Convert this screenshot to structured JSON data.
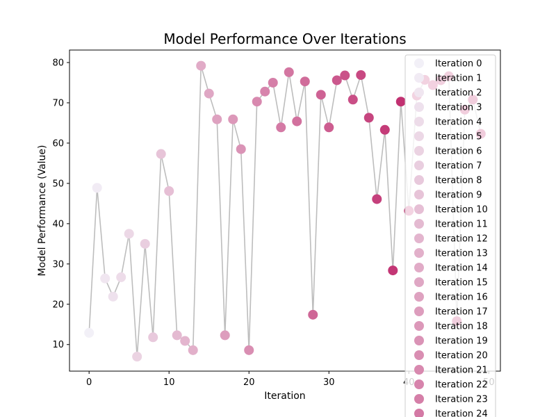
{
  "chart_data": {
    "type": "scatter",
    "title": "Model Performance Over Iterations",
    "xlabel": "Iteration",
    "ylabel": "Model Performance (Value)",
    "xlim": [
      -2.45,
      51.45
    ],
    "ylim": [
      3.4,
      83.1
    ],
    "xticks": [
      0,
      10,
      20,
      30,
      40,
      50
    ],
    "yticks": [
      10,
      20,
      30,
      40,
      50,
      60,
      70,
      80
    ],
    "grid": false,
    "legend_position": "upper right",
    "line_color": "#bdbdbd",
    "color_start": "#f2f0f7",
    "color_end": "#b5004f",
    "x": [
      0,
      1,
      2,
      3,
      4,
      5,
      6,
      7,
      8,
      9,
      10,
      11,
      12,
      13,
      14,
      15,
      16,
      17,
      18,
      19,
      20,
      21,
      22,
      23,
      24,
      25,
      26,
      27,
      28,
      29,
      30,
      31,
      32,
      33,
      34,
      35,
      36,
      37,
      38,
      39,
      40,
      41,
      42,
      43,
      44,
      45,
      46,
      47,
      48,
      49
    ],
    "y": [
      12.9,
      48.9,
      26.4,
      21.9,
      26.7,
      37.5,
      7.0,
      35.0,
      11.8,
      57.3,
      48.1,
      12.3,
      10.9,
      8.6,
      79.2,
      72.3,
      65.9,
      12.3,
      65.9,
      58.5,
      8.6,
      70.3,
      72.8,
      75.0,
      63.9,
      77.6,
      65.4,
      75.3,
      17.4,
      72.0,
      63.9,
      75.6,
      76.8,
      70.8,
      76.9,
      66.3,
      46.1,
      63.3,
      28.4,
      70.3,
      43.2,
      71.8,
      75.7,
      74.4,
      75.6,
      76.6,
      15.8,
      68.3,
      70.8,
      62.3
    ],
    "legend": [
      "Iteration 0",
      "Iteration 1",
      "Iteration 2",
      "Iteration 3",
      "Iteration 4",
      "Iteration 5",
      "Iteration 6",
      "Iteration 7",
      "Iteration 8",
      "Iteration 9",
      "Iteration 10",
      "Iteration 11",
      "Iteration 12",
      "Iteration 13",
      "Iteration 14",
      "Iteration 15",
      "Iteration 16",
      "Iteration 17",
      "Iteration 18",
      "Iteration 19",
      "Iteration 20",
      "Iteration 21",
      "Iteration 22",
      "Iteration 23",
      "Iteration 24"
    ]
  }
}
